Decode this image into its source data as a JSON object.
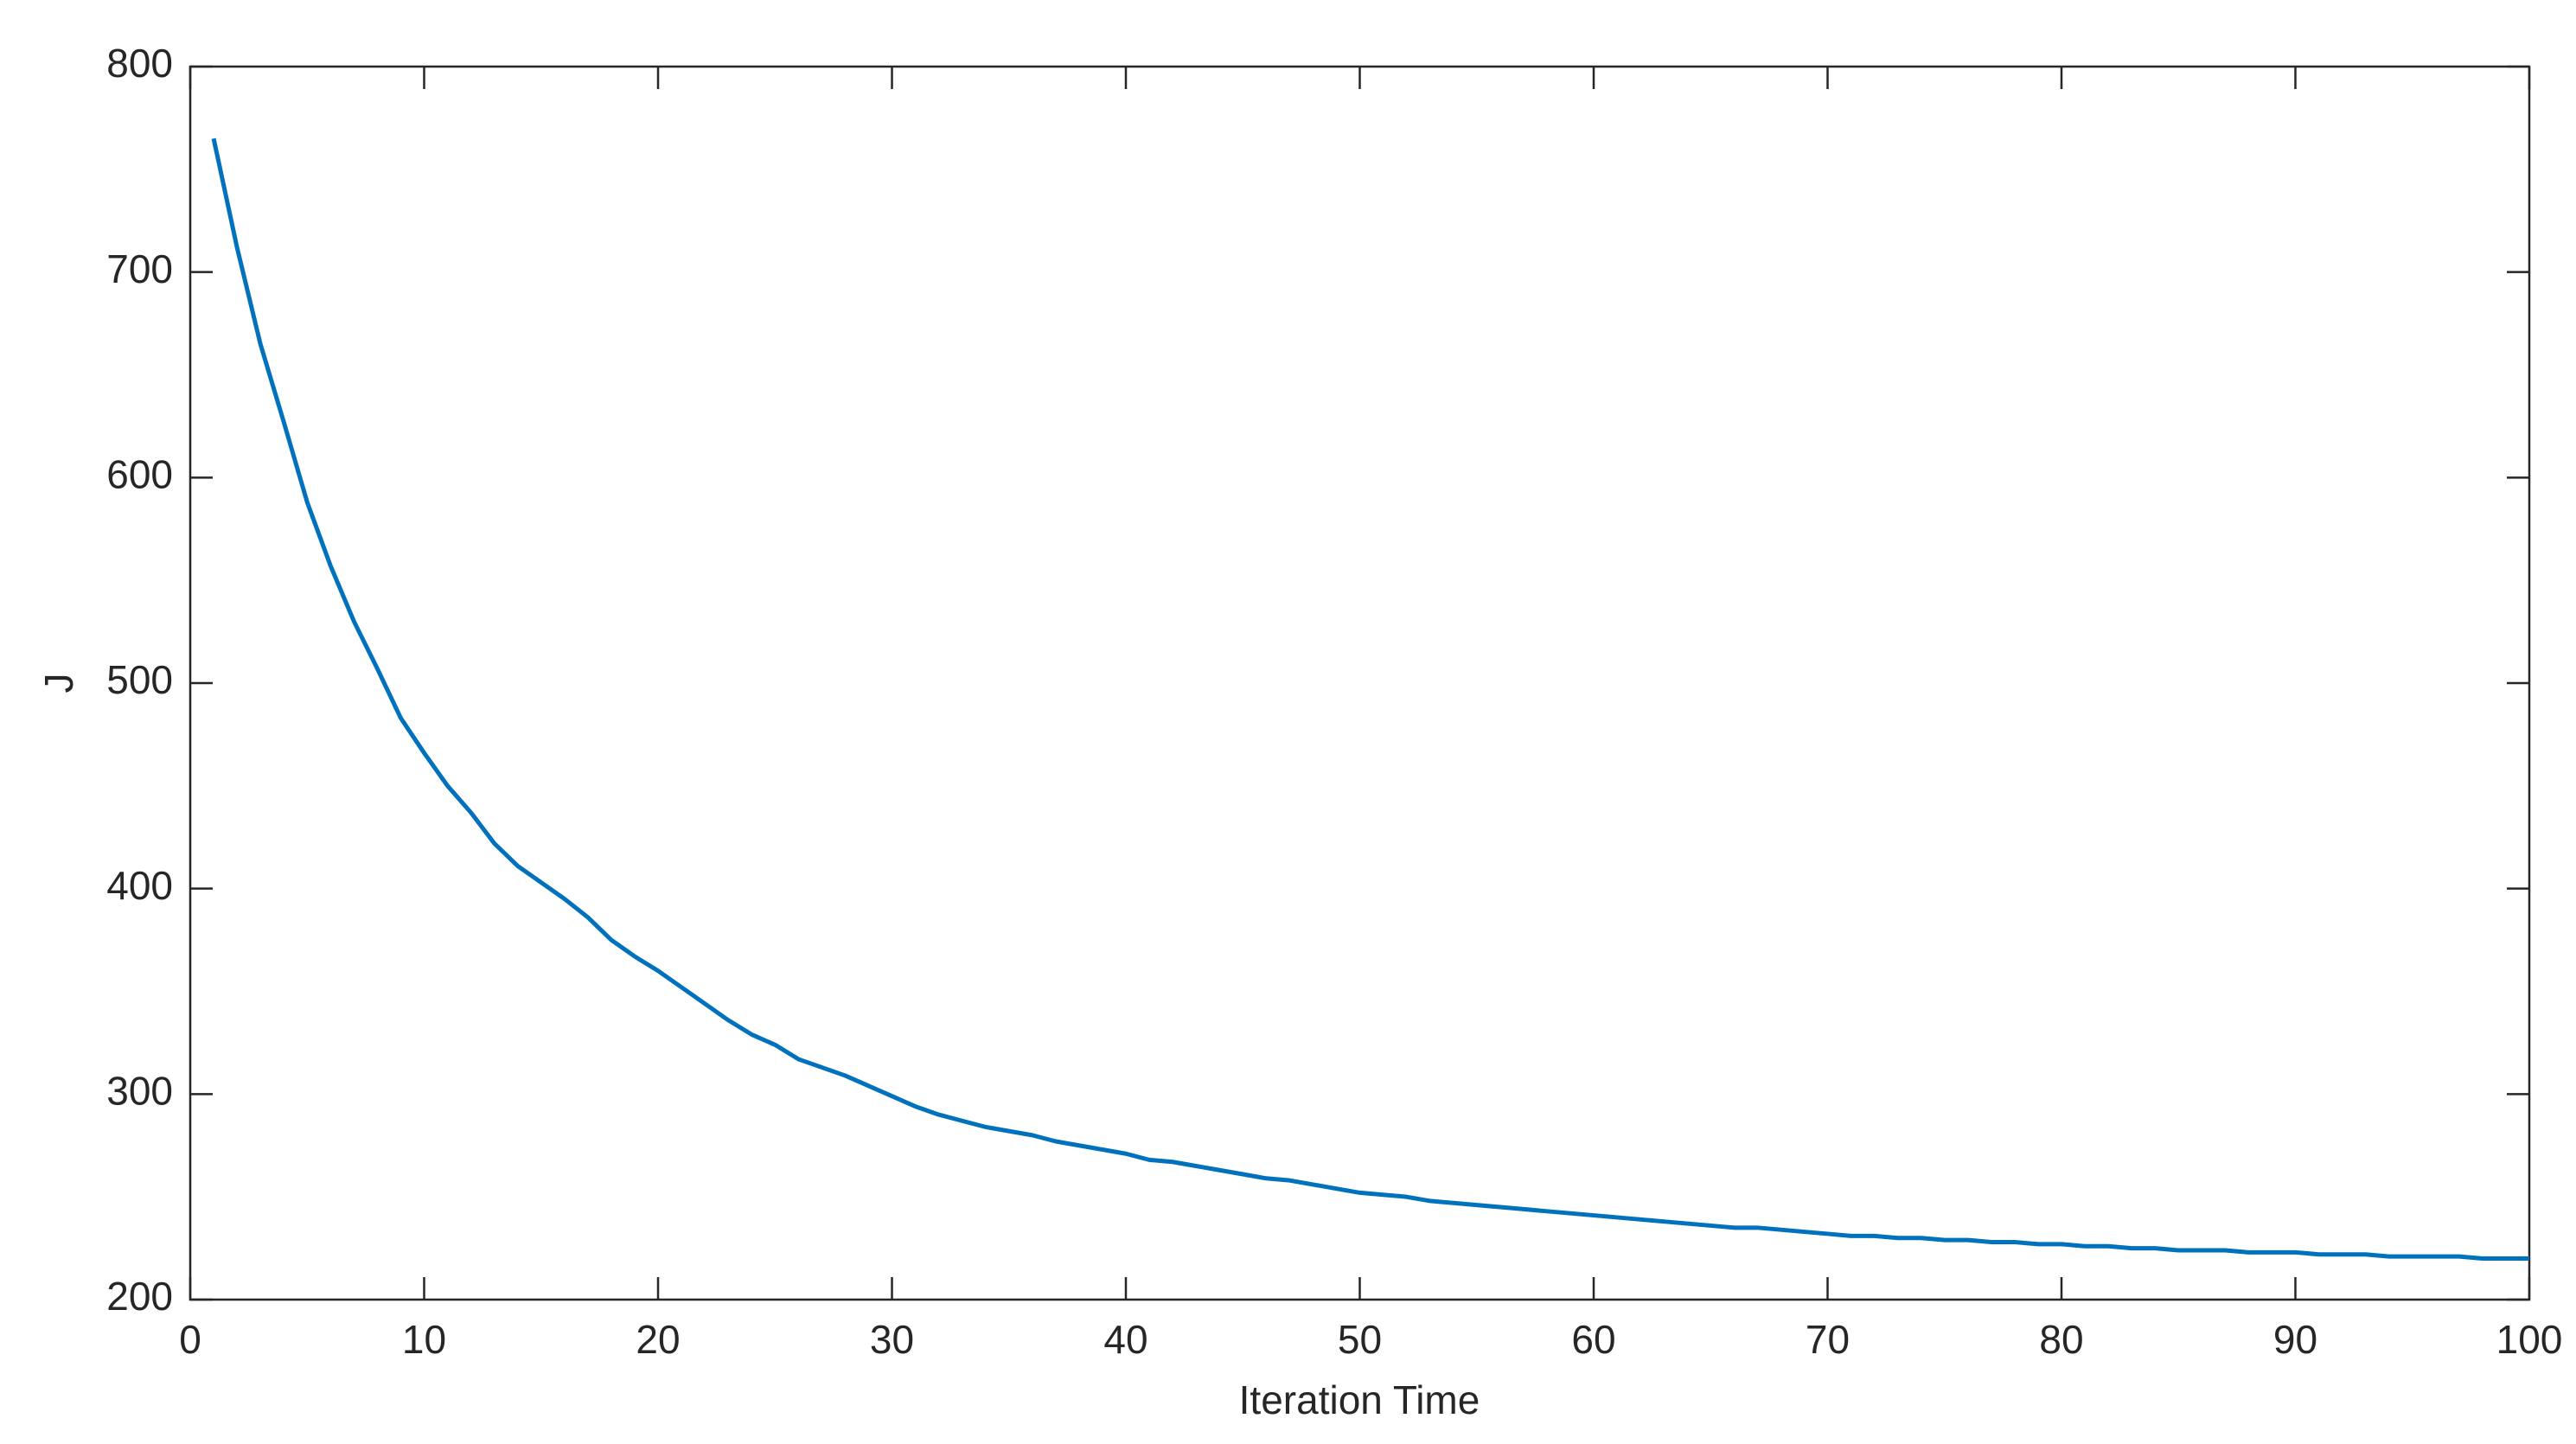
{
  "chart_data": {
    "type": "line",
    "x_label": "Iteration Time",
    "y_label": "J",
    "x": [
      1,
      2,
      3,
      4,
      5,
      6,
      7,
      8,
      9,
      10,
      11,
      12,
      13,
      14,
      15,
      16,
      17,
      18,
      19,
      20,
      21,
      22,
      23,
      24,
      25,
      26,
      27,
      28,
      29,
      30,
      31,
      32,
      33,
      34,
      35,
      36,
      37,
      38,
      39,
      40,
      41,
      42,
      43,
      44,
      45,
      46,
      47,
      48,
      49,
      50,
      51,
      52,
      53,
      54,
      55,
      56,
      57,
      58,
      59,
      60,
      61,
      62,
      63,
      64,
      65,
      66,
      67,
      68,
      69,
      70,
      71,
      72,
      73,
      74,
      75,
      76,
      77,
      78,
      79,
      80,
      81,
      82,
      83,
      84,
      85,
      86,
      87,
      88,
      89,
      90,
      91,
      92,
      93,
      94,
      95,
      96,
      97,
      98,
      99,
      100
    ],
    "values": [
      765,
      712,
      665,
      627,
      588,
      557,
      530,
      507,
      483,
      466,
      450,
      437,
      422,
      411,
      403,
      395,
      386,
      375,
      367,
      360,
      352,
      344,
      336,
      329,
      324,
      317,
      313,
      309,
      304,
      299,
      294,
      290,
      287,
      284,
      282,
      280,
      277,
      275,
      273,
      271,
      268,
      267,
      265,
      263,
      261,
      259,
      258,
      256,
      254,
      252,
      251,
      250,
      248,
      247,
      246,
      245,
      244,
      243,
      242,
      241,
      240,
      239,
      238,
      237,
      236,
      235,
      235,
      234,
      233,
      232,
      231,
      231,
      230,
      230,
      229,
      229,
      228,
      228,
      227,
      227,
      226,
      226,
      225,
      225,
      224,
      224,
      224,
      223,
      223,
      223,
      222,
      222,
      222,
      221,
      221,
      221,
      221,
      220,
      220,
      220
    ],
    "color": "#0072bd",
    "xlim": [
      0,
      100
    ],
    "xticks": [
      0,
      10,
      20,
      30,
      40,
      50,
      60,
      70,
      80,
      90,
      100
    ],
    "ylim": [
      200,
      800
    ],
    "yticks": [
      200,
      300,
      400,
      500,
      600,
      700,
      800
    ]
  }
}
